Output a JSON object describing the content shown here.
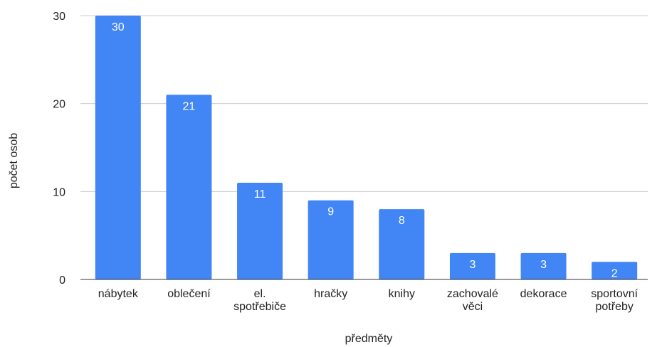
{
  "chart_data": {
    "type": "bar",
    "categories": [
      [
        "nábytek"
      ],
      [
        "oblečení"
      ],
      [
        "el.",
        "spotřebiče"
      ],
      [
        "hračky"
      ],
      [
        "knihy"
      ],
      [
        "zachovalé",
        "věci"
      ],
      [
        "dekorace"
      ],
      [
        "sportovní",
        "potřeby"
      ]
    ],
    "values": [
      30,
      21,
      11,
      9,
      8,
      3,
      3,
      2
    ],
    "data_labels": [
      "30",
      "21",
      "11",
      "9",
      "8",
      "3",
      "3",
      "2"
    ],
    "xlabel": "předměty",
    "ylabel": "počet osob",
    "ylim": [
      0,
      30
    ],
    "yticks": [
      "0",
      "10",
      "20",
      "30"
    ],
    "grid": true,
    "legend": "none",
    "colors": {
      "bar": "#4285f4",
      "grid": "#cccccc",
      "axis": "#333333"
    }
  }
}
